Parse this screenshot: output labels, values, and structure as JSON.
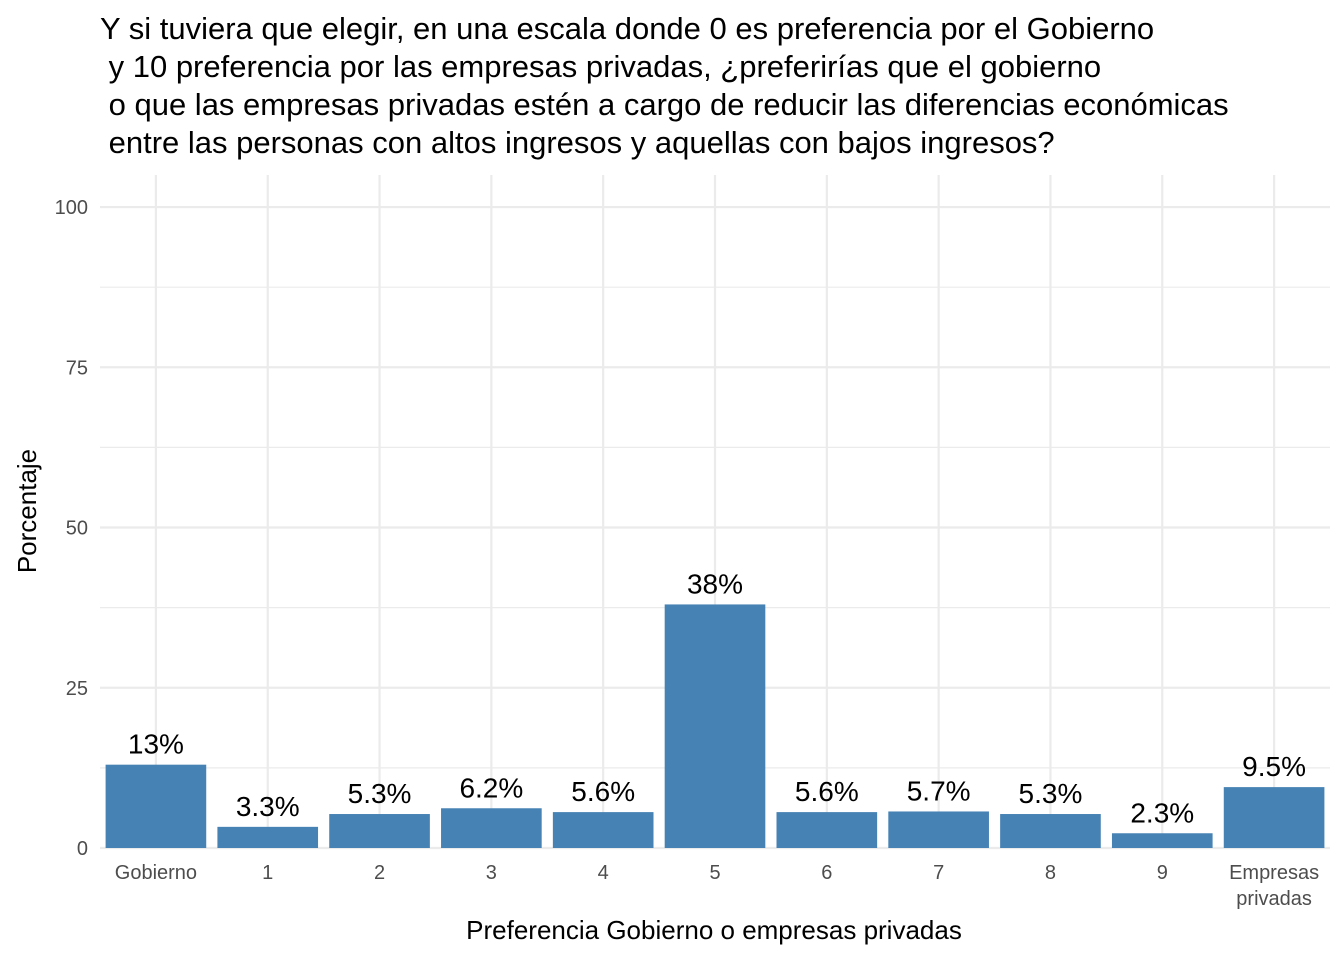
{
  "chart_data": {
    "type": "bar",
    "title": "Y si tuviera que elegir, en una escala donde 0 es preferencia por el Gobierno\n y 10 preferencia por las empresas privadas, ¿preferirías que el gobierno\n o que las empresas privadas estén a cargo de reducir las diferencias económicas\n entre las personas con altos ingresos y aquellas con bajos ingresos?",
    "xlabel": "Preferencia Gobierno o empresas privadas",
    "ylabel": "Porcentaje",
    "categories": [
      "Gobierno",
      "1",
      "2",
      "3",
      "4",
      "5",
      "6",
      "7",
      "8",
      "9",
      "Empresas\nprivadas"
    ],
    "values": [
      13,
      3.3,
      5.3,
      6.2,
      5.6,
      38,
      5.6,
      5.7,
      5.3,
      2.3,
      9.5
    ],
    "data_labels": [
      "13%",
      "3.3%",
      "5.3%",
      "6.2%",
      "5.6%",
      "38%",
      "5.6%",
      "5.7%",
      "5.3%",
      "2.3%",
      "9.5%"
    ],
    "yticks": [
      0,
      25,
      50,
      75,
      100
    ],
    "ylim": [
      0,
      105
    ],
    "grid": true,
    "bar_color": "#4682B4",
    "grid_color": "#EBEBEB"
  }
}
